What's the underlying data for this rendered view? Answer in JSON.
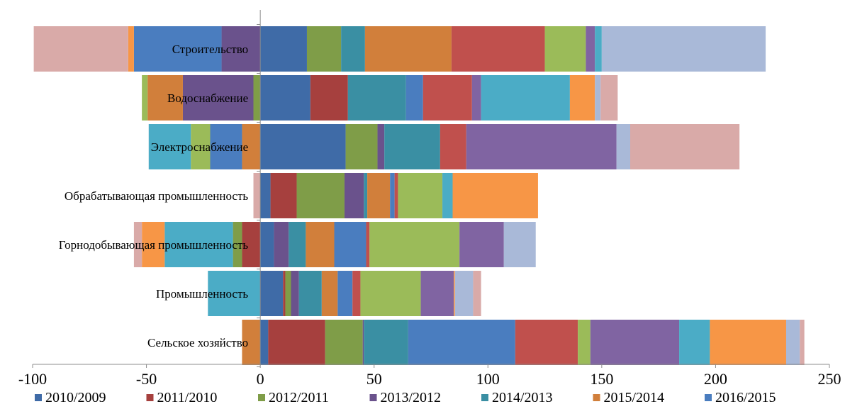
{
  "chart_data": {
    "type": "bar",
    "orientation": "horizontal",
    "stacked": true,
    "categories": [
      "Сельское хозяйство",
      "Промышленность",
      "Горнодобывающая промышленность",
      "Обрабатывающая промышленность",
      "Электроснабжение",
      "Водоснабжение",
      "Строительство"
    ],
    "xlim": [
      -100,
      250
    ],
    "xticks": [
      -100,
      -50,
      0,
      50,
      100,
      150,
      200,
      250
    ],
    "grid": false,
    "legend_position": "bottom",
    "series": [
      {
        "name": "2010/2009",
        "color": "#3F6BA7",
        "values": [
          3.5,
          10,
          6,
          4.5,
          37.5,
          22,
          20.5
        ]
      },
      {
        "name": "2011/2010",
        "color": "#A6403E",
        "values": [
          25,
          1,
          -8,
          11.5,
          0,
          16.5,
          0
        ]
      },
      {
        "name": "2012/2011",
        "color": "#7F9D48",
        "values": [
          16.5,
          2.5,
          -4,
          21,
          14,
          -3,
          15
        ]
      },
      {
        "name": "2013/2012",
        "color": "#6A528C",
        "values": [
          0.5,
          3.5,
          6.5,
          8.5,
          3,
          -31,
          -17
        ]
      },
      {
        "name": "2014/2013",
        "color": "#3A8FA3",
        "values": [
          19.5,
          10,
          7.5,
          1.5,
          24.5,
          25.5,
          10.5
        ]
      },
      {
        "name": "2015/2014",
        "color": "#D17F3B",
        "values": [
          -8,
          7,
          12.5,
          10,
          -8,
          -15.5,
          38
        ]
      },
      {
        "name": "2016/2015",
        "color": "#4A7DBF",
        "values": [
          47,
          6.5,
          14,
          2,
          -14,
          7.5,
          -38.5
        ]
      },
      {
        "name": "",
        "color": "#C0504D",
        "values": [
          27.5,
          3.5,
          1.5,
          1.5,
          11.5,
          21.5,
          41
        ]
      },
      {
        "name": "",
        "color": "#9BBB59",
        "values": [
          5.5,
          26.5,
          39.5,
          19.5,
          -8.5,
          -2.5,
          18
        ]
      },
      {
        "name": "",
        "color": "#8064A2",
        "values": [
          39,
          14.5,
          19.5,
          0,
          66,
          4,
          4
        ]
      },
      {
        "name": "",
        "color": "#4BACC6",
        "values": [
          13.5,
          -23,
          -30,
          4.5,
          -18.5,
          39,
          3
        ]
      },
      {
        "name": "",
        "color": "#F79646",
        "values": [
          33.5,
          0.5,
          -10,
          37.5,
          0,
          11,
          -2.5
        ]
      },
      {
        "name": "",
        "color": "#A9B9D8",
        "values": [
          6,
          8,
          14,
          0,
          6,
          2.5,
          72
        ]
      },
      {
        "name": "",
        "color": "#D9AAA8",
        "values": [
          2,
          3.5,
          -3.5,
          -3,
          48,
          7.5,
          -41.5
        ]
      }
    ]
  }
}
